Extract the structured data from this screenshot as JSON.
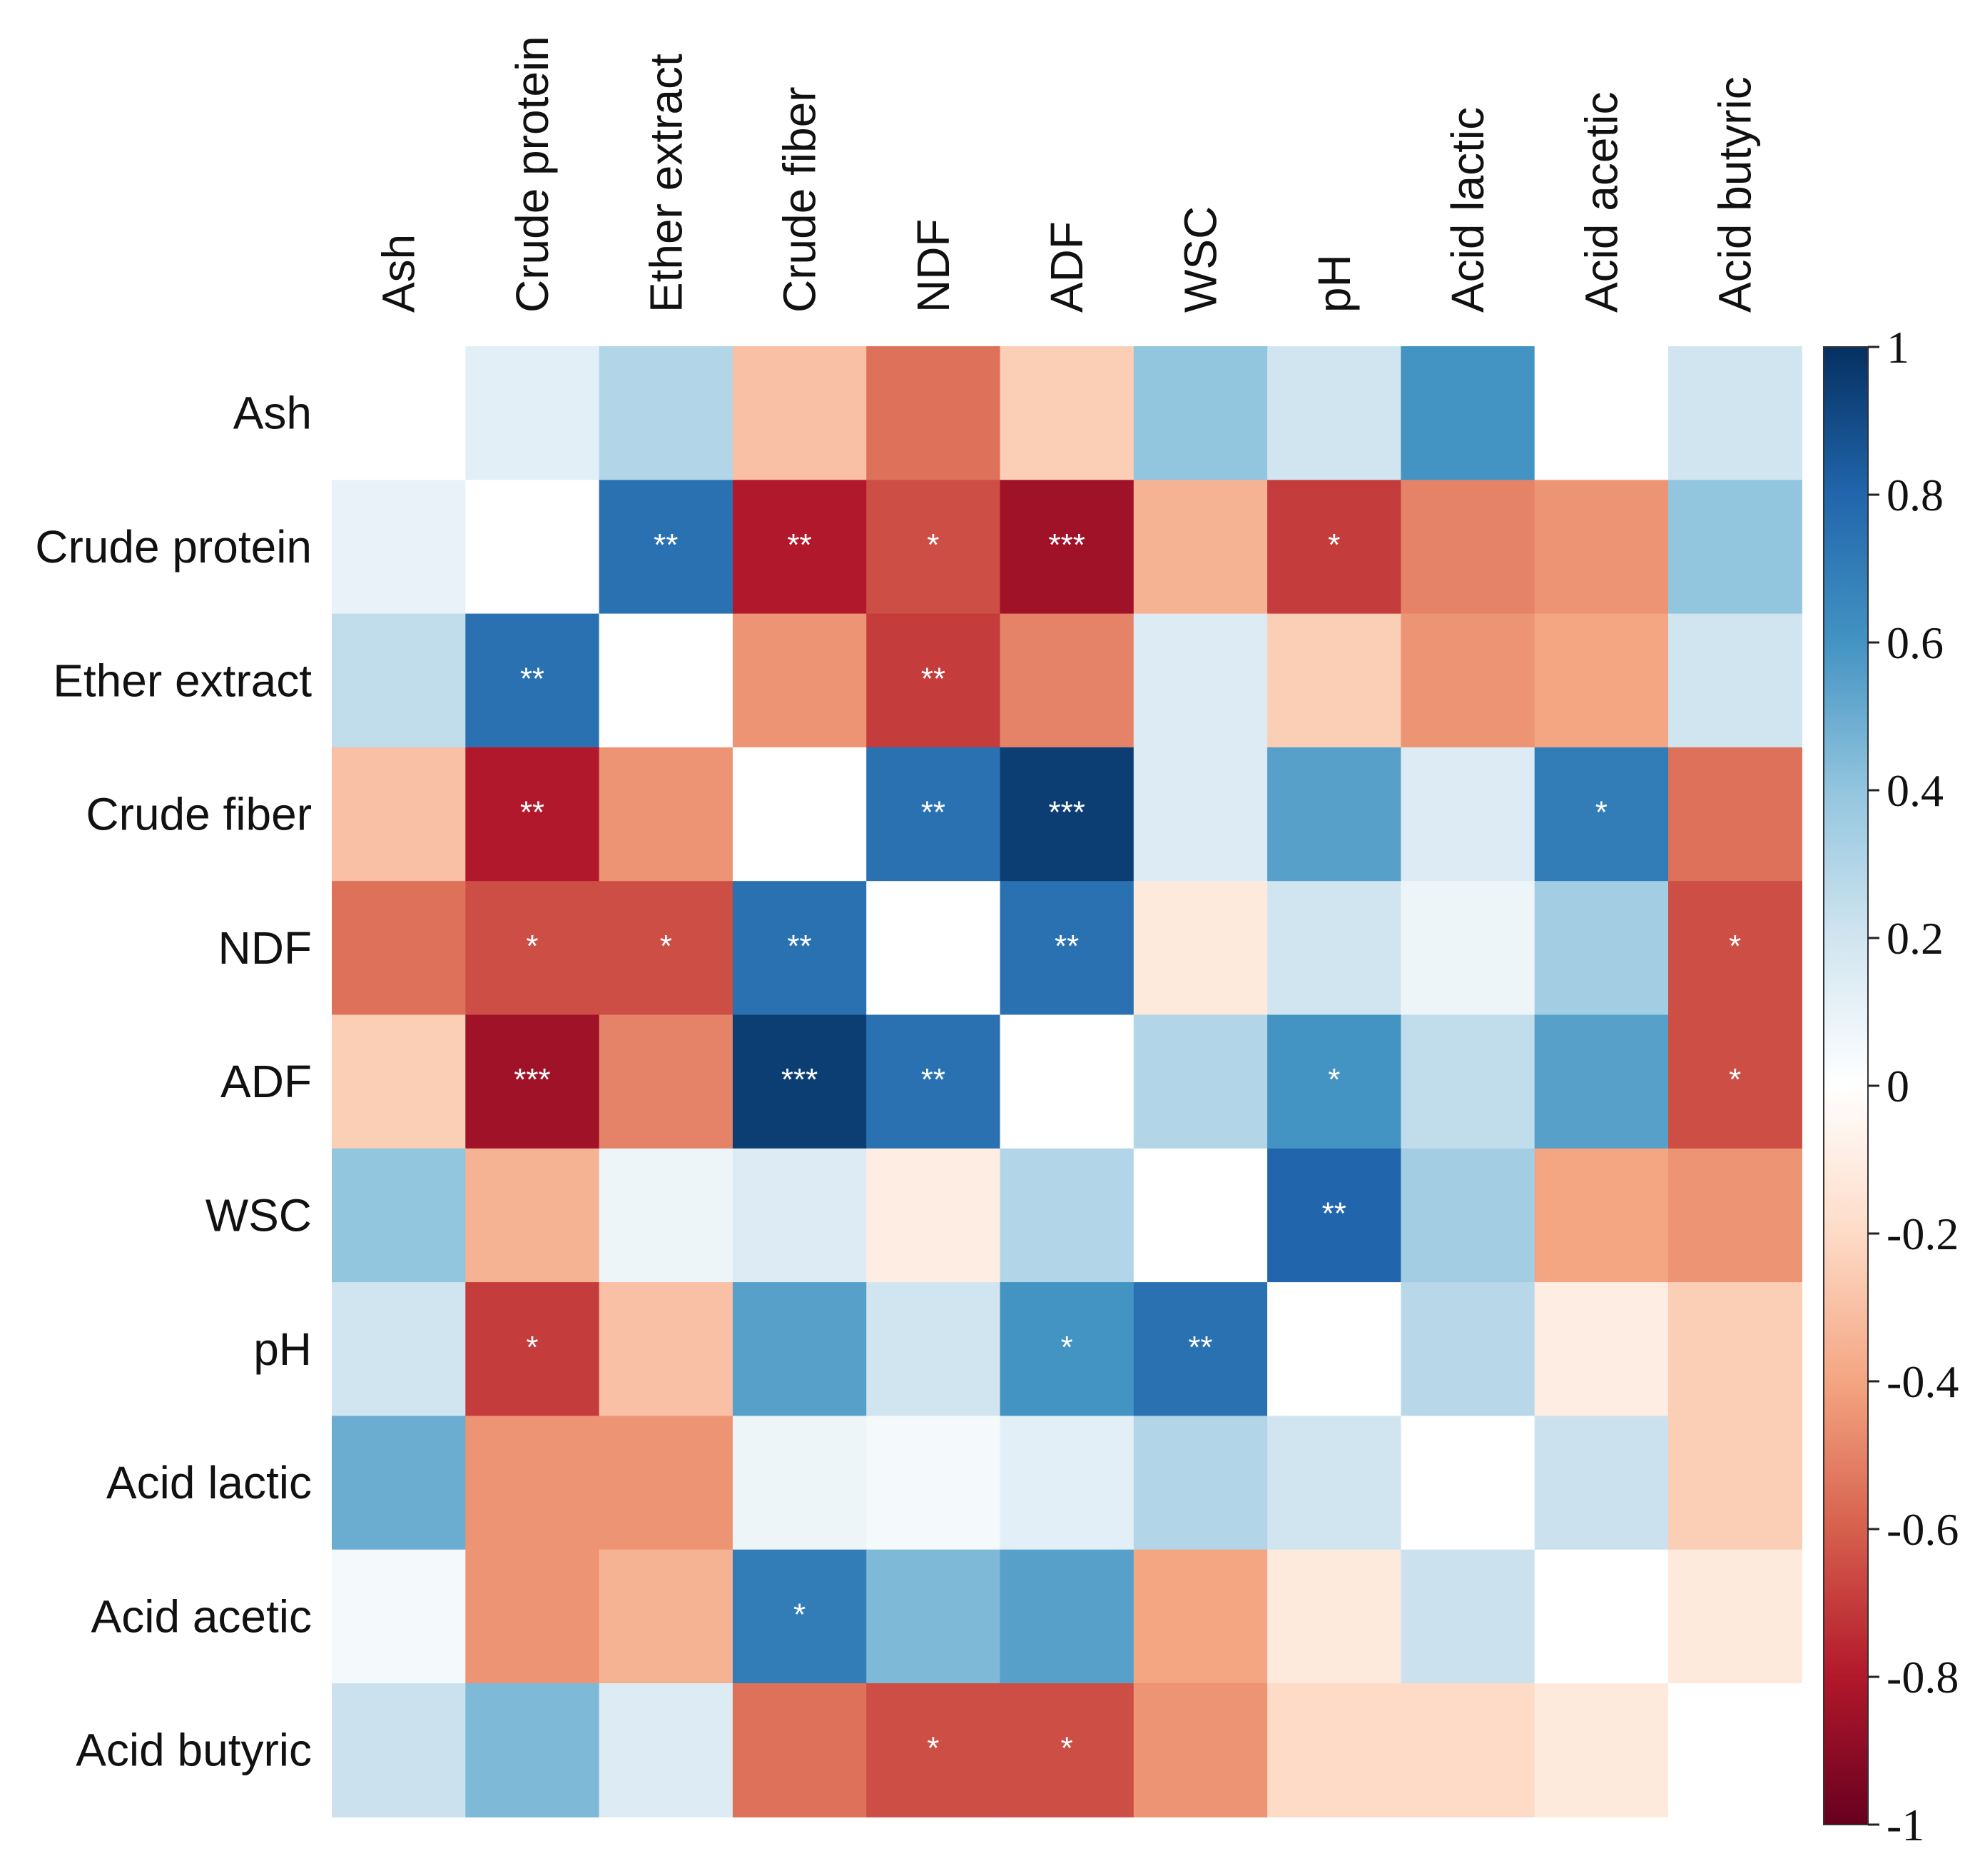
{
  "chart_data": {
    "type": "heatmap",
    "title": "",
    "xlabel": "",
    "ylabel": "",
    "variables": [
      "Ash",
      "Crude protein",
      "Ether extract",
      "Crude fiber",
      "NDF",
      "ADF",
      "WSC",
      "pH",
      "Acid lactic",
      "Acid acetic",
      "Acid butyric"
    ],
    "values": [
      [
        0,
        0.12,
        0.3,
        -0.3,
        -0.55,
        -0.25,
        0.4,
        0.2,
        0.6,
        0,
        0.2
      ],
      [
        0.1,
        0,
        0.75,
        -0.8,
        -0.65,
        -0.85,
        -0.35,
        -0.7,
        -0.5,
        -0.45,
        0.4
      ],
      [
        0.25,
        0.75,
        0,
        -0.45,
        -0.7,
        -0.5,
        0.15,
        -0.25,
        -0.45,
        -0.4,
        0.2
      ],
      [
        -0.3,
        -0.8,
        -0.45,
        0,
        0.75,
        0.95,
        0.15,
        0.55,
        0.15,
        0.7,
        -0.55
      ],
      [
        -0.55,
        -0.65,
        -0.65,
        0.75,
        0,
        0.75,
        -0.12,
        0.2,
        0.08,
        0.35,
        -0.65
      ],
      [
        -0.25,
        -0.85,
        -0.5,
        0.95,
        0.75,
        0,
        0.3,
        0.6,
        0.25,
        0.55,
        -0.65
      ],
      [
        0.4,
        -0.35,
        0.08,
        0.15,
        -0.1,
        0.3,
        0,
        0.8,
        0.35,
        -0.4,
        -0.45
      ],
      [
        0.2,
        -0.7,
        -0.3,
        0.55,
        0.2,
        0.6,
        0.75,
        0,
        0.28,
        -0.1,
        -0.25
      ],
      [
        0.5,
        -0.45,
        -0.45,
        0.08,
        0.05,
        0.12,
        0.3,
        0.2,
        0,
        0.22,
        -0.25
      ],
      [
        0.05,
        -0.45,
        -0.35,
        0.7,
        0.45,
        0.55,
        -0.4,
        -0.12,
        0.22,
        0,
        -0.12
      ],
      [
        0.22,
        0.45,
        0.15,
        -0.55,
        -0.65,
        -0.65,
        -0.45,
        -0.2,
        -0.2,
        -0.12,
        0
      ]
    ],
    "significance": [
      [
        "",
        "",
        "",
        "",
        "",
        "",
        "",
        "",
        "",
        "",
        ""
      ],
      [
        "",
        "",
        "**",
        "**",
        "*",
        "***",
        "",
        "*",
        "",
        "",
        ""
      ],
      [
        "",
        "**",
        "",
        "",
        "**",
        "",
        "",
        "",
        "",
        "",
        ""
      ],
      [
        "",
        "**",
        "",
        "",
        "**",
        "***",
        "",
        "",
        "",
        "*",
        ""
      ],
      [
        "",
        "*",
        "*",
        "**",
        "",
        "**",
        "",
        "",
        "",
        "",
        "*"
      ],
      [
        "",
        "***",
        "",
        "***",
        "**",
        "",
        "",
        "*",
        "",
        "",
        "*"
      ],
      [
        "",
        "",
        "",
        "",
        "",
        "",
        "",
        "**",
        "",
        "",
        ""
      ],
      [
        "",
        "*",
        "",
        "",
        "",
        "*",
        "**",
        "",
        "",
        "",
        ""
      ],
      [
        "",
        "",
        "",
        "",
        "",
        "",
        "",
        "",
        "",
        "",
        ""
      ],
      [
        "",
        "",
        "",
        "*",
        "",
        "",
        "",
        "",
        "",
        "",
        ""
      ],
      [
        "",
        "",
        "",
        "",
        "*",
        "*",
        "",
        "",
        "",
        "",
        ""
      ]
    ],
    "colorbar": {
      "range": [
        -1,
        1
      ],
      "ticks": [
        1,
        0.8,
        0.6,
        0.4,
        0.2,
        0,
        -0.2,
        -0.4,
        -0.6,
        -0.8,
        -1
      ],
      "tick_labels": [
        "1",
        "0.8",
        "0.6",
        "0.4",
        "0.2",
        "0",
        "-0.2",
        "-0.4",
        "-0.6",
        "-0.8",
        "-1"
      ],
      "colormap": "RdBu",
      "colors": [
        "#67001f",
        "#b2182b",
        "#d6604d",
        "#f4a582",
        "#fddbc7",
        "#ffffff",
        "#d1e5f0",
        "#92c5de",
        "#4393c3",
        "#2166ac",
        "#053061"
      ],
      "placement": "right"
    }
  }
}
